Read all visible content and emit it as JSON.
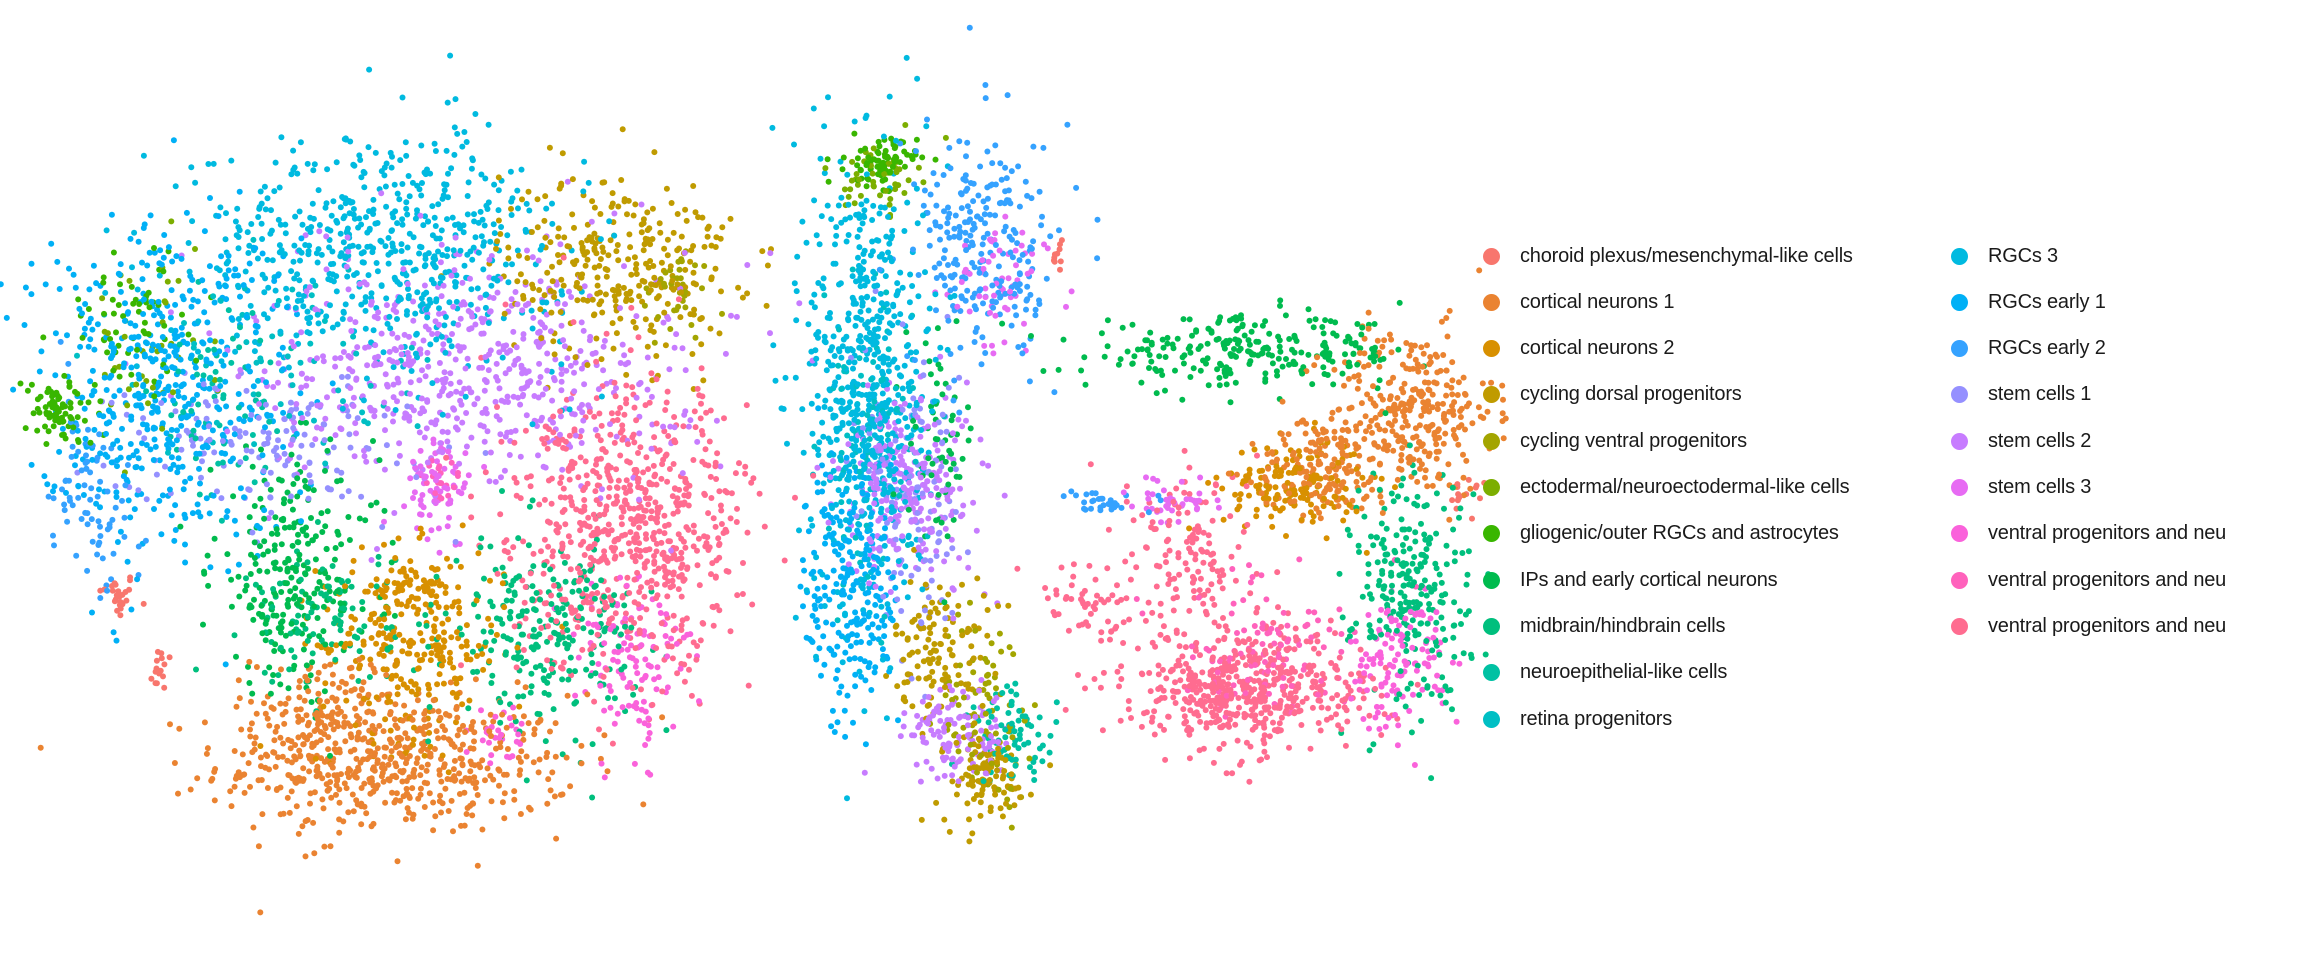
{
  "chart_data": {
    "type": "scatter",
    "title": "",
    "xlabel": "",
    "ylabel": "",
    "axes_visible": false,
    "grid": false,
    "legend_position": "right",
    "legend_columns": 2,
    "note": "Cell-embedding scatter; clusters given as approximate Gaussian regions (center x, center y, spread x, spread y, approx. count) in unlabeled embedding units",
    "categories": [
      {
        "label": "choroid plexus/mesenchymal-like cells",
        "color": "#F8766D",
        "regions": [
          [
            -70,
            9.5,
            0.8,
            1,
            25
          ],
          [
            -67,
            4.5,
            0.6,
            1,
            15
          ],
          [
            22,
            16,
            0.8,
            1,
            15
          ],
          [
            -6,
            33,
            0.5,
            1,
            10
          ]
        ]
      },
      {
        "label": "cortical neurons 1",
        "color": "#EA8331",
        "regions": [
          [
            -51,
            -2,
            7.5,
            3,
            500
          ],
          [
            -56,
            1,
            3,
            3,
            150
          ],
          [
            18,
            22,
            3.5,
            3.5,
            300
          ],
          [
            12,
            18,
            3,
            2,
            150
          ]
        ]
      },
      {
        "label": "cortical neurons 2",
        "color": "#D89000",
        "regions": [
          [
            -50,
            6,
            4,
            4,
            250
          ],
          [
            10,
            17,
            3,
            2,
            150
          ],
          [
            -50,
            10,
            2,
            1,
            60
          ]
        ]
      },
      {
        "label": "cycling dorsal progenitors",
        "color": "#C09B00",
        "regions": [
          [
            -36,
            32,
            5,
            4,
            300
          ],
          [
            -14,
            6,
            2,
            3,
            120
          ],
          [
            -11,
            -3,
            2,
            2,
            100
          ]
        ]
      },
      {
        "label": "cycling ventral progenitors",
        "color": "#A3A500",
        "regions": [
          [
            -11,
            2,
            2,
            4,
            80
          ],
          [
            -32,
            30,
            1.5,
            2,
            40
          ]
        ]
      },
      {
        "label": "ectodermal/neuroectodermal-like cells",
        "color": "#7CAE00",
        "regions": [
          [
            -18,
            38,
            1.5,
            1.5,
            50
          ],
          [
            -68,
            26,
            3,
            4,
            40
          ]
        ]
      },
      {
        "label": "gliogenic/outer RGCs and astrocytes",
        "color": "#39B600",
        "regions": [
          [
            -74,
            22,
            1.5,
            1.5,
            80
          ],
          [
            -18,
            39,
            1.5,
            1,
            80
          ],
          [
            -69,
            28,
            3,
            3,
            60
          ]
        ]
      },
      {
        "label": "IPs and early cortical neurons",
        "color": "#00BB4E",
        "regions": [
          [
            -58,
            11,
            3.5,
            5,
            250
          ],
          [
            7,
            26,
            7,
            1.5,
            250
          ],
          [
            -14,
            20,
            1.5,
            4,
            60
          ]
        ]
      },
      {
        "label": "midbrain/hindbrain cells",
        "color": "#00BF7D",
        "regions": [
          [
            -41,
            7,
            4,
            4,
            250
          ],
          [
            18,
            10,
            2.5,
            5,
            250
          ],
          [
            -56,
            8,
            3,
            3,
            100
          ]
        ]
      },
      {
        "label": "neuroepithelial-like cells",
        "color": "#00C1A3",
        "regions": [
          [
            -9,
            0,
            2,
            2,
            80
          ],
          [
            -63,
            22,
            3,
            4,
            60
          ]
        ]
      },
      {
        "label": "retina progenitors",
        "color": "#00BFC4",
        "regions": [
          [
            -19,
            20,
            2,
            6,
            100
          ],
          [
            -58,
            25,
            6,
            4,
            60
          ]
        ]
      },
      {
        "label": "RGCs 3",
        "color": "#00BAE0",
        "regions": [
          [
            -52,
            33,
            8,
            5,
            600
          ],
          [
            -19,
            24,
            2.5,
            10,
            600
          ]
        ]
      },
      {
        "label": "RGCs early 1",
        "color": "#00B0F6",
        "regions": [
          [
            -67,
            24,
            5.5,
            7,
            500
          ],
          [
            -20,
            10,
            2,
            6,
            250
          ]
        ]
      },
      {
        "label": "RGCs early 2",
        "color": "#35A2FF",
        "regions": [
          [
            -11,
            33,
            3,
            5,
            250
          ],
          [
            -72,
            16,
            2,
            4,
            80
          ],
          [
            -3,
            16,
            1.5,
            0.5,
            30
          ]
        ]
      },
      {
        "label": "stem cells 1",
        "color": "#9590FF",
        "regions": [
          [
            -60,
            20,
            6,
            3,
            150
          ],
          [
            -16,
            15,
            2.5,
            6,
            120
          ]
        ]
      },
      {
        "label": "stem cells 2",
        "color": "#C77CFF",
        "regions": [
          [
            -46,
            25,
            9,
            5,
            600
          ],
          [
            -16,
            17,
            3,
            4,
            250
          ],
          [
            -13,
            0,
            2.5,
            2,
            120
          ]
        ]
      },
      {
        "label": "stem cells 3",
        "color": "#E76BF3",
        "regions": [
          [
            -48,
            17,
            1.5,
            2,
            70
          ],
          [
            -10,
            30,
            2,
            3,
            60
          ],
          [
            2,
            16,
            2,
            1,
            40
          ]
        ]
      },
      {
        "label": "ventral progenitors and neu",
        "color": "#FA62DB",
        "regions": [
          [
            -35,
            5,
            2.5,
            4,
            120
          ],
          [
            17,
            5,
            2,
            3,
            120
          ],
          [
            -44,
            0,
            1.5,
            1,
            30
          ]
        ]
      },
      {
        "label": "ventral progenitors and neu",
        "color": "#FF62BC",
        "regions": [
          [
            8,
            6,
            4,
            3,
            100
          ],
          [
            -48,
            17,
            1,
            1,
            20
          ]
        ]
      },
      {
        "label": "ventral progenitors and neu",
        "color": "#FF6C90",
        "regions": [
          [
            -35,
            14,
            5,
            6,
            700
          ],
          [
            7,
            3,
            5,
            2.5,
            500
          ],
          [
            3,
            12,
            3,
            4,
            150
          ],
          [
            -4,
            9,
            2,
            2,
            50
          ]
        ]
      }
    ]
  }
}
